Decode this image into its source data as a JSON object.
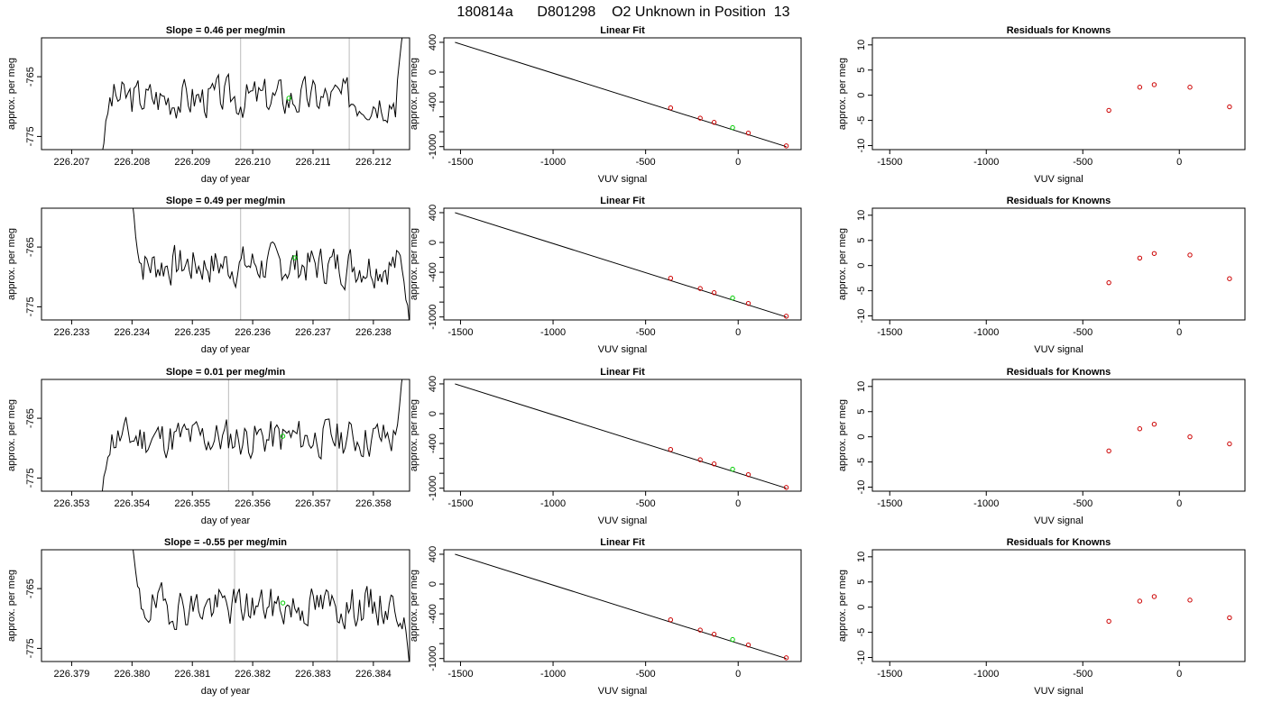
{
  "title": "180814a      D801298    O2 Unknown in Position  13",
  "colors": {
    "fit": "#000000",
    "known": "#cc0000",
    "unknown": "#00cc00",
    "marker": "#bbbbbb"
  },
  "chart_data": [
    {
      "type": "line",
      "kind": "time",
      "title": "Slope =  0.46  per meg/min",
      "xlabel": "day of year",
      "ylabel": "approx. per meg",
      "xlim": [
        226.2065,
        226.2126
      ],
      "ylim": [
        -777.2,
        -758.5
      ],
      "xticks": [
        "226.207",
        "226.208",
        "226.209",
        "226.210",
        "226.211",
        "226.212"
      ],
      "yticks": [
        "-765",
        "-775"
      ],
      "vlines": [
        226.2098,
        226.2116
      ],
      "series": [
        {
          "start": 226.2075,
          "end": 226.2125,
          "base": -768.5,
          "edge_start": -778,
          "edge_end": -757,
          "seed": 3
        }
      ],
      "unknown_point": [
        226.2106,
        -768.6
      ]
    },
    {
      "type": "scatter",
      "kind": "fit",
      "title": "Linear Fit",
      "xlabel": "VUV signal",
      "ylabel": "approx. per meg",
      "xlim": [
        -1590,
        340
      ],
      "ylim": [
        -1040,
        460
      ],
      "xticks": [
        "-1500",
        "-1000",
        "-500",
        "0"
      ],
      "yticks": [
        "400",
        "0",
        "-400",
        "-1000"
      ],
      "yminor": [
        -200,
        -600,
        -800
      ],
      "line": [
        [
          -1530,
          400
        ],
        [
          260,
          -1000
        ]
      ],
      "knowns": [
        [
          -365,
          -480
        ],
        [
          -205,
          -618
        ],
        [
          -130,
          -674
        ],
        [
          55,
          -818
        ],
        [
          260,
          -990
        ]
      ],
      "unknown_point": [
        -30,
        -745
      ]
    },
    {
      "type": "scatter",
      "kind": "resid",
      "title": "Residuals for Knowns",
      "xlabel": "VUV signal",
      "ylabel": "approx. per meg",
      "xlim": [
        -1590,
        340
      ],
      "ylim": [
        -10.8,
        11.4
      ],
      "xticks": [
        "-1500",
        "-1000",
        "-500",
        "0"
      ],
      "yticks": [
        "10",
        "5",
        "0",
        "-5",
        "-10"
      ],
      "knowns": [
        [
          -365,
          -3.0
        ],
        [
          -205,
          1.6
        ],
        [
          -130,
          2.1
        ],
        [
          55,
          1.6
        ],
        [
          260,
          -2.3
        ]
      ]
    },
    {
      "type": "line",
      "kind": "time",
      "title": "Slope =  0.49  per meg/min",
      "xlabel": "day of year",
      "ylabel": "approx. per meg",
      "xlim": [
        226.2325,
        226.2386
      ],
      "ylim": [
        -777.2,
        -758.5
      ],
      "xticks": [
        "226.233",
        "226.234",
        "226.235",
        "226.236",
        "226.237",
        "226.238"
      ],
      "yticks": [
        "-765",
        "-775"
      ],
      "vlines": [
        226.2358,
        226.2376
      ],
      "series": [
        {
          "start": 226.234,
          "end": 226.2386,
          "base": -768.0,
          "edge_start": -757,
          "edge_end": -778,
          "seed": 7
        }
      ],
      "unknown_point": [
        226.2367,
        -766.8
      ]
    },
    {
      "type": "scatter",
      "kind": "fit",
      "title": "Linear Fit",
      "xlabel": "VUV signal",
      "ylabel": "approx. per meg",
      "xlim": [
        -1590,
        340
      ],
      "ylim": [
        -1040,
        460
      ],
      "xticks": [
        "-1500",
        "-1000",
        "-500",
        "0"
      ],
      "yticks": [
        "400",
        "0",
        "-400",
        "-1000"
      ],
      "yminor": [
        -200,
        -600,
        -800
      ],
      "line": [
        [
          -1530,
          400
        ],
        [
          260,
          -1000
        ]
      ],
      "knowns": [
        [
          -365,
          -480
        ],
        [
          -205,
          -618
        ],
        [
          -130,
          -674
        ],
        [
          55,
          -818
        ],
        [
          260,
          -990
        ]
      ],
      "unknown_point": [
        -30,
        -745
      ]
    },
    {
      "type": "scatter",
      "kind": "resid",
      "title": "Residuals for Knowns",
      "xlabel": "VUV signal",
      "ylabel": "approx. per meg",
      "xlim": [
        -1590,
        340
      ],
      "ylim": [
        -10.8,
        11.4
      ],
      "xticks": [
        "-1500",
        "-1000",
        "-500",
        "0"
      ],
      "yticks": [
        "10",
        "5",
        "0",
        "-5",
        "-10"
      ],
      "knowns": [
        [
          -365,
          -3.4
        ],
        [
          -205,
          1.5
        ],
        [
          -130,
          2.4
        ],
        [
          55,
          2.1
        ],
        [
          260,
          -2.6
        ]
      ]
    },
    {
      "type": "line",
      "kind": "time",
      "title": "Slope =  0.01  per meg/min",
      "xlabel": "day of year",
      "ylabel": "approx. per meg",
      "xlim": [
        226.3525,
        226.3586
      ],
      "ylim": [
        -777.2,
        -758.5
      ],
      "xticks": [
        "226.353",
        "226.354",
        "226.355",
        "226.356",
        "226.357",
        "226.358"
      ],
      "yticks": [
        "-765",
        "-775"
      ],
      "vlines": [
        226.3556,
        226.3574
      ],
      "series": [
        {
          "start": 226.3535,
          "end": 226.3585,
          "base": -768.3,
          "edge_start": -778,
          "edge_end": -757,
          "seed": 11
        }
      ],
      "unknown_point": [
        226.3565,
        -768.0
      ]
    },
    {
      "type": "scatter",
      "kind": "fit",
      "title": "Linear Fit",
      "xlabel": "VUV signal",
      "ylabel": "approx. per meg",
      "xlim": [
        -1590,
        340
      ],
      "ylim": [
        -1040,
        460
      ],
      "xticks": [
        "-1500",
        "-1000",
        "-500",
        "0"
      ],
      "yticks": [
        "400",
        "0",
        "-400",
        "-1000"
      ],
      "yminor": [
        -200,
        -600,
        -800
      ],
      "line": [
        [
          -1530,
          400
        ],
        [
          260,
          -1000
        ]
      ],
      "knowns": [
        [
          -365,
          -480
        ],
        [
          -205,
          -618
        ],
        [
          -130,
          -674
        ],
        [
          55,
          -818
        ],
        [
          260,
          -990
        ]
      ],
      "unknown_point": [
        -30,
        -745
      ]
    },
    {
      "type": "scatter",
      "kind": "resid",
      "title": "Residuals for Knowns",
      "xlabel": "VUV signal",
      "ylabel": "approx. per meg",
      "xlim": [
        -1590,
        340
      ],
      "ylim": [
        -10.8,
        11.4
      ],
      "xticks": [
        "-1500",
        "-1000",
        "-500",
        "0"
      ],
      "yticks": [
        "10",
        "5",
        "0",
        "-5",
        "-10"
      ],
      "knowns": [
        [
          -365,
          -2.8
        ],
        [
          -205,
          1.6
        ],
        [
          -130,
          2.5
        ],
        [
          55,
          0.0
        ],
        [
          260,
          -1.4
        ]
      ]
    },
    {
      "type": "line",
      "kind": "time",
      "title": "Slope =  -0.55  per meg/min",
      "xlabel": "day of year",
      "ylabel": "approx. per meg",
      "xlim": [
        226.3785,
        226.3846
      ],
      "ylim": [
        -777.2,
        -758.5
      ],
      "xticks": [
        "226.379",
        "226.380",
        "226.381",
        "226.382",
        "226.383",
        "226.384"
      ],
      "yticks": [
        "-765",
        "-775"
      ],
      "vlines": [
        226.3817,
        226.3834
      ],
      "series": [
        {
          "start": 226.38,
          "end": 226.3846,
          "base": -768.0,
          "edge_start": -757,
          "edge_end": -778,
          "seed": 19
        }
      ],
      "unknown_point": [
        226.3825,
        -767.4
      ]
    },
    {
      "type": "scatter",
      "kind": "fit",
      "title": "Linear Fit",
      "xlabel": "VUV signal",
      "ylabel": "approx. per meg",
      "xlim": [
        -1590,
        340
      ],
      "ylim": [
        -1040,
        460
      ],
      "xticks": [
        "-1500",
        "-1000",
        "-500",
        "0"
      ],
      "yticks": [
        "400",
        "0",
        "-400",
        "-1000"
      ],
      "yminor": [
        -200,
        -600,
        -800
      ],
      "line": [
        [
          -1530,
          400
        ],
        [
          260,
          -1000
        ]
      ],
      "knowns": [
        [
          -365,
          -480
        ],
        [
          -205,
          -618
        ],
        [
          -130,
          -674
        ],
        [
          55,
          -818
        ],
        [
          260,
          -990
        ]
      ],
      "unknown_point": [
        -30,
        -745
      ]
    },
    {
      "type": "scatter",
      "kind": "resid",
      "title": "Residuals for Knowns",
      "xlabel": "VUV signal",
      "ylabel": "approx. per meg",
      "xlim": [
        -1590,
        340
      ],
      "ylim": [
        -10.8,
        11.4
      ],
      "xticks": [
        "-1500",
        "-1000",
        "-500",
        "0"
      ],
      "yticks": [
        "10",
        "5",
        "0",
        "-5",
        "-10"
      ],
      "knowns": [
        [
          -365,
          -2.8
        ],
        [
          -205,
          1.2
        ],
        [
          -130,
          2.1
        ],
        [
          55,
          1.4
        ],
        [
          260,
          -2.1
        ]
      ]
    }
  ]
}
